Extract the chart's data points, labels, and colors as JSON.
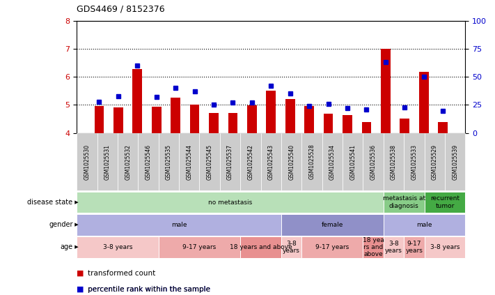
{
  "title": "GDS4469 / 8152376",
  "samples": [
    "GSM1025530",
    "GSM1025531",
    "GSM1025532",
    "GSM1025546",
    "GSM1025535",
    "GSM1025544",
    "GSM1025545",
    "GSM1025537",
    "GSM1025542",
    "GSM1025543",
    "GSM1025540",
    "GSM1025528",
    "GSM1025534",
    "GSM1025541",
    "GSM1025536",
    "GSM1025538",
    "GSM1025533",
    "GSM1025529",
    "GSM1025539"
  ],
  "bar_values": [
    4.95,
    4.92,
    6.28,
    4.93,
    5.25,
    5.02,
    4.72,
    4.72,
    4.98,
    5.52,
    5.22,
    4.97,
    4.68,
    4.65,
    4.38,
    7.0,
    4.52,
    6.18,
    4.38
  ],
  "dot_values": [
    28,
    33,
    60,
    32,
    40,
    37,
    25,
    27,
    27,
    42,
    35,
    24,
    26,
    22,
    21,
    63,
    23,
    50,
    20
  ],
  "bar_color": "#cc0000",
  "dot_color": "#0000cc",
  "ylim_left": [
    4,
    8
  ],
  "ylim_right": [
    0,
    100
  ],
  "yticks_left": [
    4,
    5,
    6,
    7,
    8
  ],
  "yticks_right": [
    0,
    25,
    50,
    75,
    100
  ],
  "grid_values": [
    5,
    6,
    7
  ],
  "disease_state_groups": [
    {
      "label": "no metastasis",
      "start": 0,
      "end": 15,
      "color": "#b8e0b8"
    },
    {
      "label": "metastasis at\ndiagnosis",
      "start": 15,
      "end": 17,
      "color": "#88cc88"
    },
    {
      "label": "recurrent\ntumor",
      "start": 17,
      "end": 19,
      "color": "#44aa44"
    }
  ],
  "gender_groups": [
    {
      "label": "male",
      "start": 0,
      "end": 10,
      "color": "#b0b0e0"
    },
    {
      "label": "female",
      "start": 10,
      "end": 15,
      "color": "#9090c8"
    },
    {
      "label": "male",
      "start": 15,
      "end": 19,
      "color": "#b0b0e0"
    }
  ],
  "age_groups": [
    {
      "label": "3-8 years",
      "start": 0,
      "end": 4,
      "color": "#f5c8c8"
    },
    {
      "label": "9-17 years",
      "start": 4,
      "end": 8,
      "color": "#eeaaaa"
    },
    {
      "label": "18 years and above",
      "start": 8,
      "end": 10,
      "color": "#e89090"
    },
    {
      "label": "3-8\nyears",
      "start": 10,
      "end": 11,
      "color": "#f5c8c8"
    },
    {
      "label": "9-17 years",
      "start": 11,
      "end": 14,
      "color": "#eeaaaa"
    },
    {
      "label": "18 yea\nrs and\nabove",
      "start": 14,
      "end": 15,
      "color": "#e89090"
    },
    {
      "label": "3-8\nyears",
      "start": 15,
      "end": 16,
      "color": "#f5c8c8"
    },
    {
      "label": "9-17\nyears",
      "start": 16,
      "end": 17,
      "color": "#eeaaaa"
    },
    {
      "label": "3-8 years",
      "start": 17,
      "end": 19,
      "color": "#f5c8c8"
    }
  ],
  "row_labels": [
    "disease state",
    "gender",
    "age"
  ],
  "legend": [
    {
      "color": "#cc0000",
      "label": "transformed count"
    },
    {
      "color": "#0000cc",
      "label": "percentile rank within the sample"
    }
  ],
  "xtick_bg": "#cccccc"
}
